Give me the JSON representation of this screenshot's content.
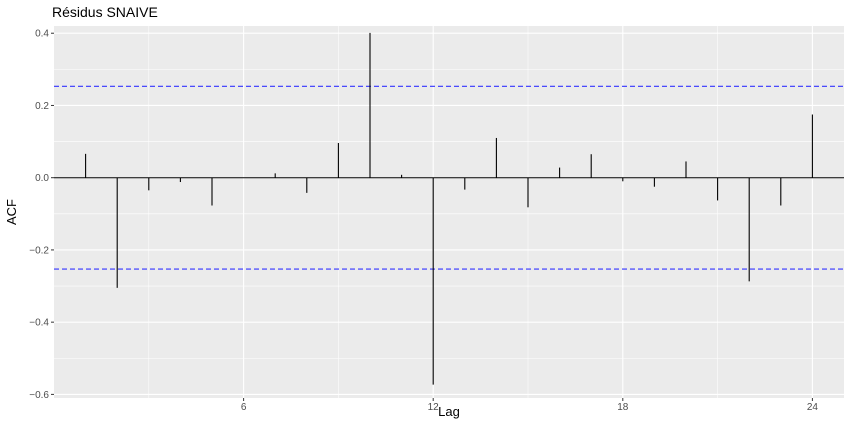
{
  "chart_data": {
    "type": "bar",
    "title": "Résidus SNAIVE",
    "xlabel": "Lag",
    "ylabel": "ACF",
    "x": [
      1,
      2,
      3,
      4,
      5,
      6,
      7,
      8,
      9,
      10,
      11,
      12,
      13,
      14,
      15,
      16,
      17,
      18,
      19,
      20,
      21,
      22,
      23,
      24
    ],
    "values": [
      0.066,
      -0.305,
      -0.035,
      -0.012,
      -0.077,
      0.0,
      0.012,
      -0.042,
      0.096,
      0.401,
      0.008,
      -0.573,
      -0.033,
      0.11,
      -0.082,
      0.028,
      0.065,
      -0.01,
      -0.025,
      0.045,
      -0.063,
      -0.287,
      -0.077,
      0.175
    ],
    "xlim": [
      0.0,
      25.0
    ],
    "ylim": [
      -0.61,
      0.42
    ],
    "x_ticks": [
      6,
      12,
      18,
      24
    ],
    "x_tick_labels": [
      "6",
      "12",
      "18",
      "24"
    ],
    "y_ticks": [
      -0.6,
      -0.4,
      -0.2,
      0.0,
      0.2,
      0.4
    ],
    "y_tick_labels": [
      "−0.6",
      "−0.4",
      "−0.2",
      "0.0",
      "0.2",
      "0.4"
    ],
    "confidence_bounds": [
      0.253,
      -0.253
    ],
    "colors": {
      "panel_background": "#ebebeb",
      "grid_major": "#ffffff",
      "bars": "#000000",
      "zero_line": "#000000",
      "confidence_bounds": "#3333ff"
    },
    "grid": true,
    "legend": "none"
  }
}
